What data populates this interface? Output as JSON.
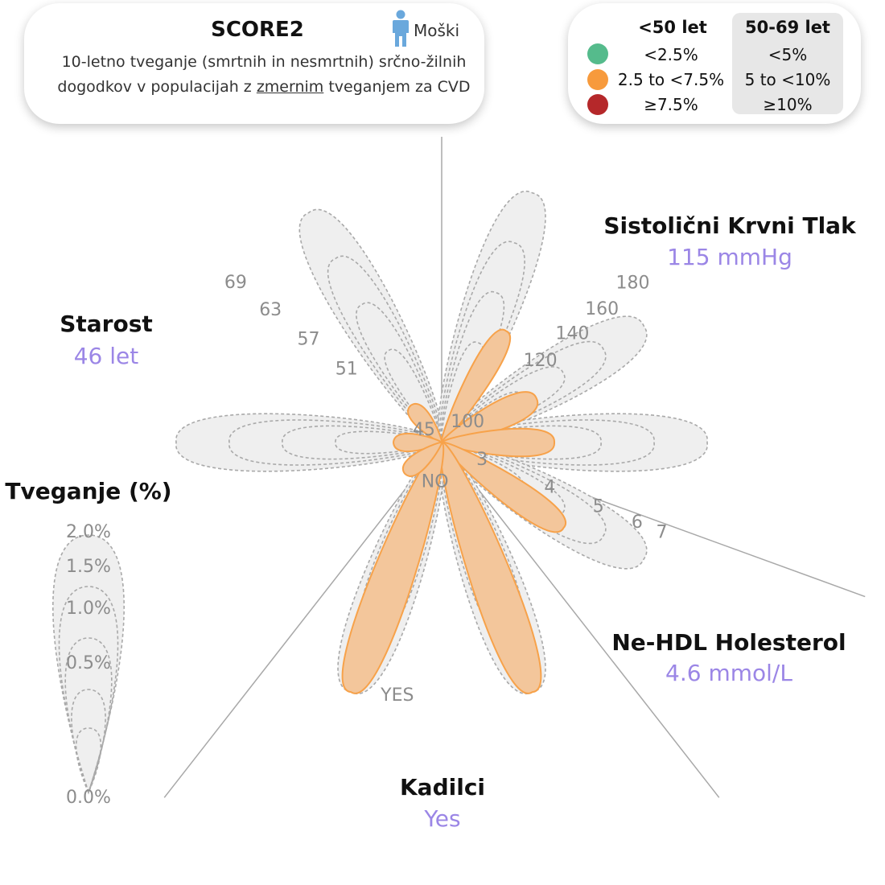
{
  "header": {
    "title": "SCORE2",
    "gender_label": "Moški",
    "subtitle_line1": "10-letno tveganje (smrtnih in nesmrtnih) srčno-žilnih",
    "subtitle_line2_pre": "dogodkov v populacijah z ",
    "subtitle_line2_underlined": "zmernim",
    "subtitle_line2_post": " tveganjem za CVD"
  },
  "legend": {
    "col1_header": "<50 let",
    "col2_header": "50-69 let",
    "rows": [
      {
        "color_name": "green",
        "color": "#55bb8c",
        "under50": "<2.5%",
        "age50_69": "<5%"
      },
      {
        "color_name": "orange",
        "color": "#f79a3c",
        "under50": "2.5 to <7.5%",
        "age50_69": "5 to <10%"
      },
      {
        "color_name": "red",
        "color": "#b5282a",
        "under50": "≥7.5%",
        "age50_69": "≥10%"
      }
    ]
  },
  "axes": {
    "age": {
      "title": "Starost",
      "value": "46 let"
    },
    "sbp": {
      "title": "Sistolični Krvni Tlak",
      "value": "115 mmHg"
    },
    "chol": {
      "title": "Ne-HDL Holesterol",
      "value": "4.6 mmol/L"
    },
    "smoke": {
      "title": "Kadilci",
      "value": "Yes"
    },
    "risk": {
      "title": "Tveganje (%)"
    }
  },
  "chart_data": {
    "type": "radial-petal",
    "axes": [
      {
        "name": "Starost",
        "ticks": [
          "45",
          "51",
          "57",
          "63",
          "69"
        ],
        "value": 46,
        "unit": "let"
      },
      {
        "name": "Sistolični Krvni Tlak",
        "ticks": [
          "100",
          "120",
          "140",
          "160",
          "180"
        ],
        "value": 115,
        "unit": "mmHg"
      },
      {
        "name": "Ne-HDL Holesterol",
        "ticks": [
          "3",
          "4",
          "5",
          "6",
          "7"
        ],
        "value": 4.6,
        "unit": "mmol/L"
      },
      {
        "name": "Kadilci",
        "ticks": [
          "NO",
          "YES"
        ],
        "value": "Yes"
      }
    ],
    "risk_scale": {
      "title": "Tveganje (%)",
      "ticks": [
        "0.0%",
        "0.5%",
        "1.0%",
        "1.5%",
        "2.0%"
      ]
    },
    "highlight_color": "#f7a24a",
    "highlight_fill": "#f3c69b",
    "background_fill": "#efefef"
  }
}
